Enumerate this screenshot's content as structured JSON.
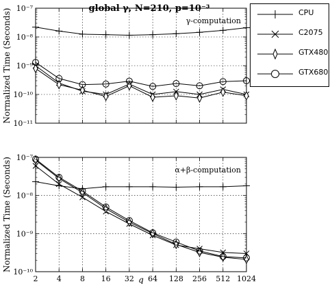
{
  "figure": {
    "title": "global γ, N=210, p=10⁻³"
  },
  "chart_data": [
    {
      "type": "line",
      "annotation": "γ-computation",
      "ylabel": "Normalized Time (Seconds)",
      "xlabel": "",
      "x": [
        2,
        4,
        8,
        16,
        32,
        64,
        128,
        256,
        512,
        1024
      ],
      "xscale": "log2",
      "yscale": "log10",
      "ylim": [
        1e-11,
        1e-07
      ],
      "ytick_labels": [
        "10⁻⁷",
        "10⁻⁸",
        "10⁻⁹",
        "10⁻¹⁰",
        "10⁻¹¹"
      ],
      "grid": true,
      "series": [
        {
          "name": "CPU",
          "marker": "plus",
          "values": [
            2.2e-08,
            1.6e-08,
            1.25e-08,
            1.2e-08,
            1.15e-08,
            1.2e-08,
            1.3e-08,
            1.45e-08,
            1.7e-08,
            2.1e-08
          ]
        },
        {
          "name": "C2075",
          "marker": "x",
          "values": [
            1e-09,
            2.5e-10,
            1.3e-10,
            1e-10,
            2.3e-10,
            1e-10,
            1.25e-10,
            1e-10,
            1.5e-10,
            1e-10
          ]
        },
        {
          "name": "GTX480",
          "marker": "thin-diamond",
          "values": [
            8e-10,
            2.2e-10,
            1.4e-10,
            8.5e-11,
            2e-10,
            8e-11,
            9e-11,
            7.5e-11,
            1.2e-10,
            9e-11
          ]
        },
        {
          "name": "GTX680",
          "marker": "circle",
          "values": [
            1.3e-09,
            3.6e-10,
            2.2e-10,
            2.3e-10,
            2.9e-10,
            1.9e-10,
            2.4e-10,
            2e-10,
            2.8e-10,
            3e-10
          ]
        }
      ]
    },
    {
      "type": "line",
      "annotation": "α+β-computation",
      "ylabel": "Normalized Time (Seconds)",
      "xlabel": "q",
      "x": [
        2,
        4,
        8,
        16,
        32,
        64,
        128,
        256,
        512,
        1024
      ],
      "xscale": "log2",
      "yscale": "log10",
      "ylim": [
        1e-10,
        1e-07
      ],
      "ytick_labels": [
        "10⁻⁷",
        "10⁻⁸",
        "10⁻⁹",
        "10⁻¹⁰"
      ],
      "xtick_labels": [
        "2",
        "4",
        "8",
        "16",
        "32",
        "64",
        "128",
        "256",
        "512",
        "1024"
      ],
      "grid": true,
      "series": [
        {
          "name": "CPU",
          "marker": "plus",
          "values": [
            2.3e-08,
            1.8e-08,
            1.5e-08,
            1.7e-08,
            1.7e-08,
            1.7e-08,
            1.65e-08,
            1.7e-08,
            1.7e-08,
            1.8e-08
          ]
        },
        {
          "name": "C2075",
          "marker": "x",
          "values": [
            6e-08,
            2e-08,
            9e-09,
            3.8e-09,
            1.8e-09,
            9e-10,
            5e-10,
            4e-10,
            3.2e-10,
            3e-10
          ]
        },
        {
          "name": "GTX480",
          "marker": "thin-diamond",
          "values": [
            8.5e-08,
            2.8e-08,
            1.2e-08,
            4.5e-09,
            2e-09,
            1e-09,
            5.2e-10,
            3.2e-10,
            2.4e-10,
            2.1e-10
          ]
        },
        {
          "name": "GTX680",
          "marker": "circle",
          "values": [
            9e-08,
            3e-08,
            1.3e-08,
            5e-09,
            2.2e-09,
            1.05e-09,
            6e-10,
            3.5e-10,
            2.5e-10,
            2.3e-10
          ]
        }
      ]
    }
  ],
  "legend": {
    "placement": "top-right, outside",
    "items": [
      {
        "label": "CPU",
        "marker": "plus"
      },
      {
        "label": "C2075",
        "marker": "x"
      },
      {
        "label": "GTX480",
        "marker": "thin-diamond"
      },
      {
        "label": "GTX680",
        "marker": "circle"
      }
    ]
  }
}
